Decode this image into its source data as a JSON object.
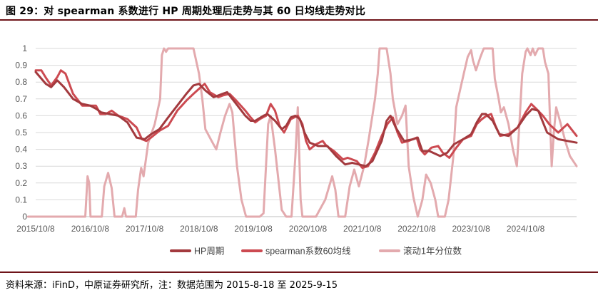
{
  "figure": {
    "title": "图 29：对 spearman 系数进行 HP 周期处理后走势与其 60 日均线走势对比",
    "source": "资料来源：iFinD，中原证券研究所，注：数据范围为 2015-8-18 至 2025-9-15"
  },
  "chart_data": {
    "type": "line",
    "ylim": [
      0,
      1
    ],
    "y_ticks": [
      "0",
      "0.1",
      "0.2",
      "0.3",
      "0.4",
      "0.5",
      "0.6",
      "0.7",
      "0.8",
      "0.9",
      "1"
    ],
    "x_ticks": [
      "2015/10/8",
      "2016/10/8",
      "2017/10/8",
      "2018/10/8",
      "2019/10/8",
      "2020/10/8",
      "2021/10/8",
      "2022/10/8",
      "2023/10/8",
      "2024/10/8"
    ],
    "x_range": [
      "2015/10/8",
      "2025/9/15"
    ],
    "grid": "horizontal",
    "legend_position": "bottom",
    "series": [
      {
        "name": "HP周期",
        "color": "#a33a3e",
        "points": [
          [
            "2015/10/8",
            0.86
          ],
          [
            "2015/12/15",
            0.79
          ],
          [
            "2016/1/20",
            0.77
          ],
          [
            "2016/3/1",
            0.81
          ],
          [
            "2016/4/15",
            0.77
          ],
          [
            "2016/6/15",
            0.7
          ],
          [
            "2016/8/15",
            0.67
          ],
          [
            "2016/10/8",
            0.66
          ],
          [
            "2016/11/20",
            0.64
          ],
          [
            "2016/12/20",
            0.62
          ],
          [
            "2017/2/15",
            0.61
          ],
          [
            "2017/4/15",
            0.6
          ],
          [
            "2017/6/15",
            0.56
          ],
          [
            "2017/8/15",
            0.47
          ],
          [
            "2017/10/8",
            0.46
          ],
          [
            "2017/11/20",
            0.49
          ],
          [
            "2018/1/15",
            0.52
          ],
          [
            "2018/3/15",
            0.59
          ],
          [
            "2018/5/15",
            0.66
          ],
          [
            "2018/7/15",
            0.73
          ],
          [
            "2018/9/1",
            0.78
          ],
          [
            "2018/10/8",
            0.79
          ],
          [
            "2018/11/20",
            0.75
          ],
          [
            "2019/1/15",
            0.71
          ],
          [
            "2019/3/15",
            0.73
          ],
          [
            "2019/4/15",
            0.74
          ],
          [
            "2019/6/15",
            0.67
          ],
          [
            "2019/8/15",
            0.6
          ],
          [
            "2019/9/20",
            0.57
          ],
          [
            "2019/10/20",
            0.57
          ],
          [
            "2019/12/15",
            0.6
          ],
          [
            "2020/1/10",
            0.61
          ],
          [
            "2020/3/1",
            0.57
          ],
          [
            "2020/4/15",
            0.52
          ],
          [
            "2020/5/15",
            0.54
          ],
          [
            "2020/6/15",
            0.59
          ],
          [
            "2020/7/15",
            0.6
          ],
          [
            "2020/8/15",
            0.58
          ],
          [
            "2020/9/15",
            0.5
          ],
          [
            "2020/10/20",
            0.44
          ],
          [
            "2020/12/15",
            0.42
          ],
          [
            "2021/2/15",
            0.42
          ],
          [
            "2021/4/15",
            0.36
          ],
          [
            "2021/6/15",
            0.31
          ],
          [
            "2021/8/1",
            0.32
          ],
          [
            "2021/9/15",
            0.31
          ],
          [
            "2021/11/1",
            0.3
          ],
          [
            "2021/12/15",
            0.33
          ],
          [
            "2022/2/15",
            0.45
          ],
          [
            "2022/3/20",
            0.57
          ],
          [
            "2022/4/15",
            0.6
          ],
          [
            "2022/5/20",
            0.53
          ],
          [
            "2022/7/15",
            0.45
          ],
          [
            "2022/9/15",
            0.46
          ],
          [
            "2022/10/15",
            0.47
          ],
          [
            "2022/11/15",
            0.39
          ],
          [
            "2023/1/1",
            0.39
          ],
          [
            "2023/3/15",
            0.36
          ],
          [
            "2023/5/1",
            0.38
          ],
          [
            "2023/6/15",
            0.43
          ],
          [
            "2023/8/15",
            0.46
          ],
          [
            "2023/10/8",
            0.49
          ],
          [
            "2023/11/15",
            0.56
          ],
          [
            "2023/12/20",
            0.61
          ],
          [
            "2024/1/15",
            0.61
          ],
          [
            "2024/3/1",
            0.57
          ],
          [
            "2024/4/15",
            0.49
          ],
          [
            "2024/6/15",
            0.48
          ],
          [
            "2024/8/15",
            0.53
          ],
          [
            "2024/10/8",
            0.6
          ],
          [
            "2024/11/20",
            0.64
          ],
          [
            "2025/1/1",
            0.63
          ],
          [
            "2025/3/1",
            0.5
          ],
          [
            "2025/5/15",
            0.46
          ],
          [
            "2025/9/15",
            0.44
          ]
        ]
      },
      {
        "name": "spearman系数60均线",
        "color": "#cc4a51",
        "points": [
          [
            "2015/10/8",
            0.87
          ],
          [
            "2015/11/15",
            0.87
          ],
          [
            "2015/12/20",
            0.82
          ],
          [
            "2016/1/20",
            0.78
          ],
          [
            "2016/3/1",
            0.83
          ],
          [
            "2016/3/25",
            0.87
          ],
          [
            "2016/4/25",
            0.85
          ],
          [
            "2016/6/15",
            0.73
          ],
          [
            "2016/8/15",
            0.66
          ],
          [
            "2016/10/8",
            0.66
          ],
          [
            "2016/11/15",
            0.66
          ],
          [
            "2016/12/15",
            0.61
          ],
          [
            "2017/1/20",
            0.61
          ],
          [
            "2017/3/1",
            0.63
          ],
          [
            "2017/4/15",
            0.6
          ],
          [
            "2017/6/15",
            0.58
          ],
          [
            "2017/8/15",
            0.53
          ],
          [
            "2017/9/20",
            0.46
          ],
          [
            "2017/10/20",
            0.45
          ],
          [
            "2017/11/20",
            0.47
          ],
          [
            "2018/1/15",
            0.51
          ],
          [
            "2018/3/15",
            0.54
          ],
          [
            "2018/5/15",
            0.63
          ],
          [
            "2018/7/15",
            0.69
          ],
          [
            "2018/9/1",
            0.73
          ],
          [
            "2018/10/8",
            0.76
          ],
          [
            "2018/11/15",
            0.79
          ],
          [
            "2018/12/20",
            0.74
          ],
          [
            "2019/2/15",
            0.71
          ],
          [
            "2019/3/15",
            0.72
          ],
          [
            "2019/5/1",
            0.73
          ],
          [
            "2019/6/15",
            0.69
          ],
          [
            "2019/8/15",
            0.63
          ],
          [
            "2019/9/20",
            0.59
          ],
          [
            "2019/10/20",
            0.56
          ],
          [
            "2019/11/20",
            0.58
          ],
          [
            "2020/1/1",
            0.6
          ],
          [
            "2020/2/1",
            0.67
          ],
          [
            "2020/3/1",
            0.63
          ],
          [
            "2020/4/1",
            0.54
          ],
          [
            "2020/5/1",
            0.5
          ],
          [
            "2020/6/15",
            0.58
          ],
          [
            "2020/8/1",
            0.6
          ],
          [
            "2020/9/1",
            0.55
          ],
          [
            "2020/9/25",
            0.45
          ],
          [
            "2020/10/20",
            0.4
          ],
          [
            "2020/12/1",
            0.43
          ],
          [
            "2021/1/15",
            0.45
          ],
          [
            "2021/2/10",
            0.42
          ],
          [
            "2021/4/1",
            0.39
          ],
          [
            "2021/6/1",
            0.34
          ],
          [
            "2021/7/1",
            0.35
          ],
          [
            "2021/9/1",
            0.33
          ],
          [
            "2021/10/8",
            0.29
          ],
          [
            "2021/11/15",
            0.3
          ],
          [
            "2022/1/1",
            0.38
          ],
          [
            "2022/2/15",
            0.48
          ],
          [
            "2022/3/25",
            0.55
          ],
          [
            "2022/5/1",
            0.59
          ],
          [
            "2022/6/1",
            0.5
          ],
          [
            "2022/7/1",
            0.44
          ],
          [
            "2022/8/15",
            0.45
          ],
          [
            "2022/10/8",
            0.47
          ],
          [
            "2022/11/1",
            0.4
          ],
          [
            "2022/12/1",
            0.37
          ],
          [
            "2023/1/15",
            0.41
          ],
          [
            "2023/3/1",
            0.42
          ],
          [
            "2023/4/1",
            0.38
          ],
          [
            "2023/5/15",
            0.35
          ],
          [
            "2023/7/1",
            0.41
          ],
          [
            "2023/8/15",
            0.46
          ],
          [
            "2023/10/8",
            0.48
          ],
          [
            "2023/11/15",
            0.55
          ],
          [
            "2023/12/20",
            0.58
          ],
          [
            "2024/1/20",
            0.6
          ],
          [
            "2024/2/20",
            0.61
          ],
          [
            "2024/3/20",
            0.54
          ],
          [
            "2024/4/20",
            0.48
          ],
          [
            "2024/6/15",
            0.49
          ],
          [
            "2024/8/15",
            0.53
          ],
          [
            "2024/10/8",
            0.62
          ],
          [
            "2024/11/15",
            0.67
          ],
          [
            "2024/12/20",
            0.64
          ],
          [
            "2025/2/1",
            0.6
          ],
          [
            "2025/3/15",
            0.55
          ],
          [
            "2025/5/15",
            0.5
          ],
          [
            "2025/7/15",
            0.55
          ],
          [
            "2025/9/15",
            0.48
          ]
        ]
      },
      {
        "name": "滚动1年分位数",
        "color": "#e3aaae",
        "points": [
          [
            "2015/8/18",
            0
          ],
          [
            "2016/9/5",
            0
          ],
          [
            "2016/9/20",
            0.24
          ],
          [
            "2016/10/1",
            0.2
          ],
          [
            "2016/10/10",
            0
          ],
          [
            "2016/12/25",
            0
          ],
          [
            "2017/1/10",
            0.18
          ],
          [
            "2017/2/5",
            0.26
          ],
          [
            "2017/3/1",
            0.17
          ],
          [
            "2017/3/20",
            0
          ],
          [
            "2017/5/10",
            0
          ],
          [
            "2017/5/25",
            0.05
          ],
          [
            "2017/6/5",
            0
          ],
          [
            "2017/8/10",
            0
          ],
          [
            "2017/8/25",
            0.16
          ],
          [
            "2017/9/15",
            0.29
          ],
          [
            "2017/10/1",
            0.24
          ],
          [
            "2017/11/1",
            0.44
          ],
          [
            "2017/12/15",
            0.55
          ],
          [
            "2018/1/20",
            0.7
          ],
          [
            "2018/2/1",
            0.96
          ],
          [
            "2018/2/15",
            1
          ],
          [
            "2018/3/1",
            0.98
          ],
          [
            "2018/3/15",
            1
          ],
          [
            "2018/9/1",
            1
          ],
          [
            "2018/10/8",
            0.85
          ],
          [
            "2018/10/30",
            0.7
          ],
          [
            "2018/11/20",
            0.52
          ],
          [
            "2019/1/1",
            0.45
          ],
          [
            "2019/2/1",
            0.4
          ],
          [
            "2019/3/1",
            0.5
          ],
          [
            "2019/4/1",
            0.6
          ],
          [
            "2019/5/1",
            0.67
          ],
          [
            "2019/5/20",
            0.62
          ],
          [
            "2019/6/20",
            0.3
          ],
          [
            "2019/7/20",
            0.1
          ],
          [
            "2019/8/20",
            0
          ],
          [
            "2019/11/20",
            0
          ],
          [
            "2019/12/15",
            0.02
          ],
          [
            "2020/1/15",
            0.55
          ],
          [
            "2020/2/1",
            0.6
          ],
          [
            "2020/3/1",
            0.4
          ],
          [
            "2020/4/15",
            0.04
          ],
          [
            "2020/5/15",
            0
          ],
          [
            "2020/6/20",
            0
          ],
          [
            "2020/7/15",
            0.35
          ],
          [
            "2020/8/1",
            0.65
          ],
          [
            "2020/8/20",
            0.1
          ],
          [
            "2020/9/1",
            0
          ],
          [
            "2020/12/1",
            0
          ],
          [
            "2021/2/1",
            0.1
          ],
          [
            "2021/3/20",
            0.24
          ],
          [
            "2021/4/10",
            0.16
          ],
          [
            "2021/5/1",
            0
          ],
          [
            "2021/6/15",
            0
          ],
          [
            "2021/7/15",
            0.18
          ],
          [
            "2021/8/15",
            0.28
          ],
          [
            "2021/9/15",
            0.18
          ],
          [
            "2021/10/20",
            0.3
          ],
          [
            "2021/11/20",
            0.46
          ],
          [
            "2022/1/1",
            0.7
          ],
          [
            "2022/1/20",
            0.85
          ],
          [
            "2022/2/1",
            1
          ],
          [
            "2022/3/20",
            1
          ],
          [
            "2022/4/15",
            0.85
          ],
          [
            "2022/5/1",
            0.7
          ],
          [
            "2022/6/1",
            0.55
          ],
          [
            "2022/7/1",
            0.6
          ],
          [
            "2022/7/25",
            0.66
          ],
          [
            "2022/8/15",
            0.3
          ],
          [
            "2022/9/15",
            0.12
          ],
          [
            "2022/10/15",
            0
          ],
          [
            "2022/11/15",
            0.1
          ],
          [
            "2022/12/10",
            0.25
          ],
          [
            "2023/1/10",
            0.2
          ],
          [
            "2023/2/10",
            0.1
          ],
          [
            "2023/3/1",
            0
          ],
          [
            "2023/4/15",
            0
          ],
          [
            "2023/5/10",
            0.1
          ],
          [
            "2023/6/10",
            0.35
          ],
          [
            "2023/6/30",
            0.65
          ],
          [
            "2023/7/20",
            0.73
          ],
          [
            "2023/8/20",
            0.85
          ],
          [
            "2023/9/15",
            0.95
          ],
          [
            "2023/10/8",
            0.99
          ],
          [
            "2023/10/20",
            0.93
          ],
          [
            "2023/11/10",
            0.87
          ],
          [
            "2023/12/10",
            0.95
          ],
          [
            "2024/1/1",
            1
          ],
          [
            "2024/3/1",
            1
          ],
          [
            "2024/3/15",
            0.82
          ],
          [
            "2024/4/10",
            0.7
          ],
          [
            "2024/4/25",
            0.62
          ],
          [
            "2024/5/15",
            0.65
          ],
          [
            "2024/6/15",
            0.55
          ],
          [
            "2024/7/15",
            0.4
          ],
          [
            "2024/8/10",
            0.3
          ],
          [
            "2024/8/25",
            0.52
          ],
          [
            "2024/9/15",
            0.85
          ],
          [
            "2024/10/8",
            0.98
          ],
          [
            "2024/10/20",
            1
          ],
          [
            "2024/11/10",
            0.96
          ],
          [
            "2024/11/25",
            1
          ],
          [
            "2024/12/10",
            0.96
          ],
          [
            "2025/1/1",
            1
          ],
          [
            "2025/2/1",
            1
          ],
          [
            "2025/2/15",
            0.92
          ],
          [
            "2025/3/10",
            0.85
          ],
          [
            "2025/4/1",
            0.3
          ],
          [
            "2025/4/15",
            0.5
          ],
          [
            "2025/5/1",
            0.65
          ],
          [
            "2025/6/1",
            0.55
          ],
          [
            "2025/7/1",
            0.45
          ],
          [
            "2025/8/1",
            0.36
          ],
          [
            "2025/9/15",
            0.3
          ]
        ]
      }
    ]
  }
}
